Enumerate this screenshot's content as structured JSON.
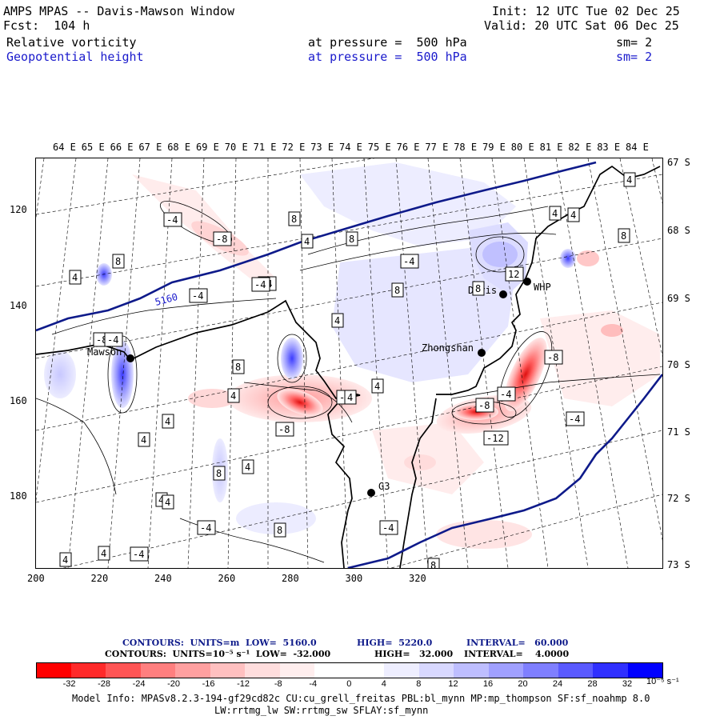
{
  "header": {
    "title": "AMPS MPAS -- Davis-Mawson Window",
    "forecast": "Fcst:  104 h",
    "init": "Init: 12 UTC Tue 02 Dec 25",
    "valid": "Valid: 20 UTC Sat 06 Dec 25",
    "field1": {
      "name": "Relative vorticity",
      "level": "at pressure =  500 hPa",
      "sm": "sm= 2"
    },
    "field2": {
      "name": "Geopotential height",
      "level": "at pressure =  500 hPa",
      "sm": "sm= 2"
    }
  },
  "axes": {
    "top_lon": [
      "64 E",
      "65 E",
      "66 E",
      "67 E",
      "68 E",
      "69 E",
      "70 E",
      "71 E",
      "72 E",
      "73 E",
      "74 E",
      "75 E",
      "76 E",
      "77 E",
      "78 E",
      "79 E",
      "80 E",
      "81 E",
      "82 E",
      "83 E",
      "84 E"
    ],
    "right_lat": [
      "67 S",
      "68 S",
      "69 S",
      "70 S",
      "71 S",
      "72 S",
      "73 S"
    ],
    "left_y": [
      "120",
      "140",
      "160",
      "180"
    ],
    "bottom_x": [
      "200",
      "220",
      "240",
      "260",
      "280",
      "300",
      "320"
    ]
  },
  "stations": [
    {
      "name": "Mawson"
    },
    {
      "name": "Davis"
    },
    {
      "name": "WHP"
    },
    {
      "name": "Zhongshan"
    },
    {
      "name": "G3"
    }
  ],
  "contour_labels": {
    "height_5160": "5160",
    "vort": [
      "-4",
      "-8",
      "8",
      "4",
      "-4",
      "8",
      "-4",
      "8",
      "-4",
      "12",
      "8",
      "4",
      "4",
      "8",
      "4",
      "-4",
      "4",
      "8",
      "4",
      "-8",
      "-4",
      "4",
      "8",
      "4",
      "-8",
      "-4",
      "-8",
      "-4",
      "-12",
      "-8",
      "-4",
      "4",
      "8",
      "-4",
      "4",
      "4",
      "4",
      "8",
      "4",
      "4",
      "8",
      "-4",
      "-4",
      "4",
      "4"
    ]
  },
  "contour_info": {
    "line1": {
      "label": "CONTOURS:  UNITS=m  LOW=  5160.0",
      "high": "HIGH=  5220.0",
      "interval": "INTERVAL=   60.000"
    },
    "line2": {
      "label": "CONTOURS:  UNITS=10⁻⁵ s⁻¹  LOW=  -32.000",
      "high": "HIGH=   32.000",
      "interval": "INTERVAL=    4.0000"
    }
  },
  "colorbar": {
    "colors": [
      "#ff0000",
      "#ff2a2a",
      "#ff5555",
      "#ff7f7f",
      "#ffa0a0",
      "#ffc0c0",
      "#ffdddd",
      "#ffeeee",
      "#ffffff",
      "#ffffff",
      "#eeeeff",
      "#d8d8ff",
      "#bebeff",
      "#a0a0ff",
      "#7f7fff",
      "#5a5aff",
      "#3030ff",
      "#0000ff"
    ],
    "labels": [
      "-32",
      "-28",
      "-24",
      "-20",
      "-16",
      "-12",
      "-8",
      "-4",
      "0",
      "4",
      "8",
      "12",
      "16",
      "20",
      "24",
      "28",
      "32"
    ],
    "units": "10⁻⁵ s⁻¹"
  },
  "model_info": {
    "line1": "Model Info: MPASv8.2.3-194-gf29cd82c CU:cu_grell_freitas PBL:bl_mynn MP:mp_thompson SF:sf_noahmp 8.0",
    "line2": "LW:rrtmg_lw SW:rrtmg_sw SFLAY:sf_mynn"
  }
}
